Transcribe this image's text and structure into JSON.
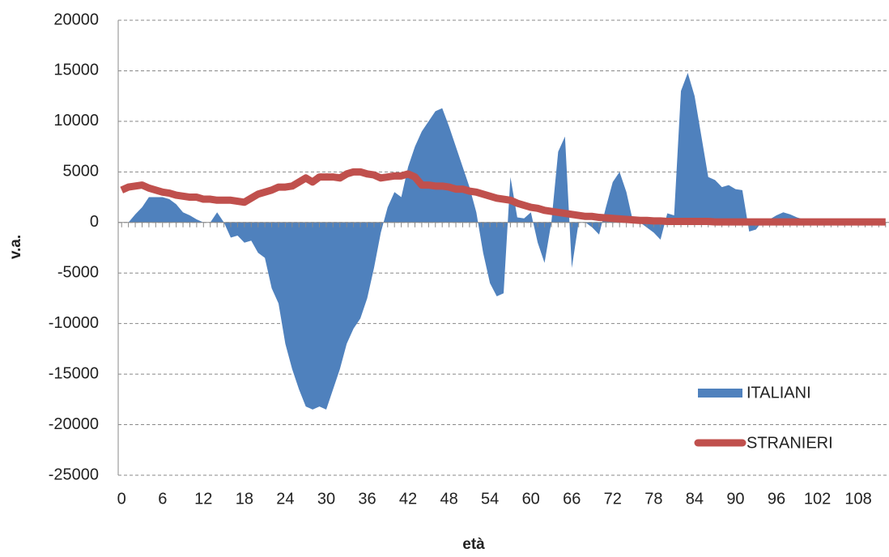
{
  "chart_data": {
    "type": "area-line",
    "xlabel": "età",
    "ylabel": "v.a.",
    "x": [
      0,
      1,
      2,
      3,
      4,
      5,
      6,
      7,
      8,
      9,
      10,
      11,
      12,
      13,
      14,
      15,
      16,
      17,
      18,
      19,
      20,
      21,
      22,
      23,
      24,
      25,
      26,
      27,
      28,
      29,
      30,
      31,
      32,
      33,
      34,
      35,
      36,
      37,
      38,
      39,
      40,
      41,
      42,
      43,
      44,
      45,
      46,
      47,
      48,
      49,
      50,
      51,
      52,
      53,
      54,
      55,
      56,
      57,
      58,
      59,
      60,
      61,
      62,
      63,
      64,
      65,
      66,
      67,
      68,
      69,
      70,
      71,
      72,
      73,
      74,
      75,
      76,
      77,
      78,
      79,
      80,
      81,
      82,
      83,
      84,
      85,
      86,
      87,
      88,
      89,
      90,
      91,
      92,
      93,
      94,
      95,
      96,
      97,
      98,
      99,
      100,
      101,
      102,
      103,
      104,
      105,
      106,
      107,
      108,
      109,
      110,
      111,
      112
    ],
    "series": [
      {
        "name": "ITALIANI",
        "kind": "area",
        "color": "#4f81bd",
        "values": [
          0,
          0,
          800,
          1500,
          2500,
          2500,
          2500,
          2300,
          1800,
          1000,
          700,
          300,
          0,
          0,
          1000,
          0,
          -1500,
          -1300,
          -2000,
          -1800,
          -3000,
          -3500,
          -6500,
          -8000,
          -12000,
          -14500,
          -16500,
          -18200,
          -18500,
          -18200,
          -18500,
          -16500,
          -14500,
          -12000,
          -10500,
          -9500,
          -7500,
          -4500,
          -1000,
          1500,
          3000,
          2500,
          5500,
          7500,
          9000,
          10000,
          11000,
          11300,
          9500,
          7500,
          5500,
          3500,
          1000,
          -3000,
          -6000,
          -7300,
          -7000,
          4500,
          500,
          400,
          1000,
          -2000,
          -4000,
          0,
          7000,
          8500,
          -4500,
          0,
          0,
          -500,
          -1200,
          1500,
          4000,
          5000,
          3000,
          0,
          0,
          -500,
          -1000,
          -1700,
          900,
          700,
          13000,
          14800,
          12500,
          8500,
          4500,
          4200,
          3500,
          3700,
          3300,
          3200,
          -900,
          -700,
          200,
          300,
          700,
          1000,
          800,
          500,
          300,
          200,
          100,
          100,
          100,
          100,
          100,
          50,
          50,
          50,
          50,
          50,
          50
        ]
      },
      {
        "name": "STRANIERI",
        "kind": "line",
        "color": "#c0504d",
        "values": [
          3200,
          3500,
          3600,
          3700,
          3400,
          3200,
          3000,
          2900,
          2700,
          2600,
          2500,
          2500,
          2300,
          2300,
          2200,
          2200,
          2200,
          2100,
          2000,
          2400,
          2800,
          3000,
          3200,
          3500,
          3500,
          3600,
          4000,
          4400,
          4000,
          4500,
          4500,
          4500,
          4400,
          4800,
          5000,
          5000,
          4800,
          4700,
          4400,
          4500,
          4600,
          4600,
          4800,
          4500,
          3700,
          3700,
          3600,
          3600,
          3500,
          3300,
          3300,
          3100,
          3000,
          2800,
          2600,
          2400,
          2300,
          2200,
          1900,
          1700,
          1500,
          1400,
          1200,
          1100,
          1000,
          900,
          800,
          700,
          600,
          600,
          500,
          450,
          400,
          350,
          300,
          250,
          200,
          200,
          150,
          150,
          100,
          100,
          100,
          100,
          100,
          100,
          100,
          50,
          50,
          50,
          50,
          50,
          50,
          50,
          50,
          50,
          50,
          50,
          50,
          50,
          50,
          50,
          50,
          50,
          50,
          50,
          50,
          50,
          50,
          50,
          50,
          50,
          50
        ]
      }
    ],
    "xlim": [
      -0.5,
      112.5
    ],
    "xticks": [
      0,
      6,
      12,
      18,
      24,
      30,
      36,
      42,
      48,
      54,
      60,
      66,
      72,
      78,
      84,
      90,
      96,
      102,
      108
    ],
    "ylim": [
      -25000,
      20000
    ],
    "yticks": [
      -25000,
      -20000,
      -15000,
      -10000,
      -5000,
      0,
      5000,
      10000,
      15000,
      20000
    ],
    "grid": true,
    "legend": "lower right"
  }
}
